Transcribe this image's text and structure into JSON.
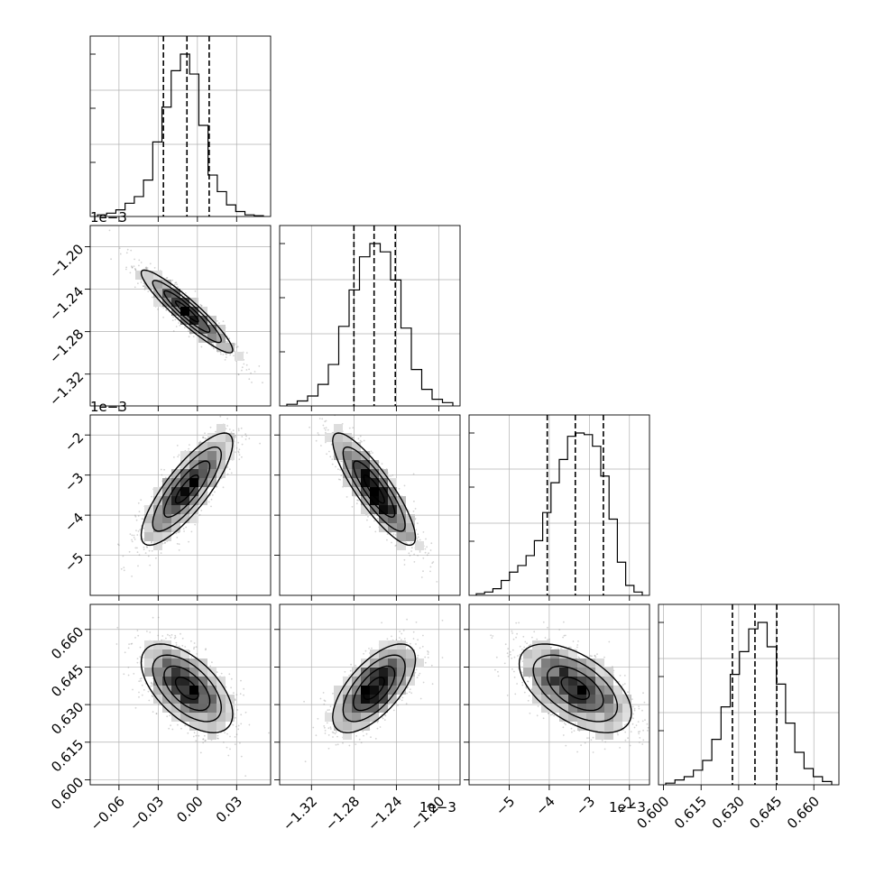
{
  "chart_data": {
    "type": "corner",
    "parameters": [
      {
        "range": [
          -0.082,
          0.056
        ],
        "median": -0.008,
        "q16": -0.026,
        "q84": 0.009,
        "hist_counts": [
          1,
          2,
          4,
          8,
          12,
          22,
          45,
          66,
          88,
          98,
          86,
          55,
          25,
          15,
          7,
          3,
          1,
          0.5
        ],
        "ticks": [
          -0.06,
          -0.03,
          0.0,
          0.03
        ],
        "tick_labels": [
          "−0.06",
          "−0.03",
          "0.00",
          "0.03"
        ],
        "offset_text": ""
      },
      {
        "range": [
          -1.35,
          -1.18
        ],
        "median": -1.261,
        "q16": -1.28,
        "q84": -1.241,
        "hist_counts": [
          1,
          3,
          6,
          13,
          25,
          48,
          70,
          90,
          98,
          93,
          76,
          47,
          22,
          10,
          4,
          2
        ],
        "ticks": [
          -1.32,
          -1.28,
          -1.24,
          -1.2
        ],
        "tick_labels": [
          "−1.32",
          "−1.28",
          "−1.24",
          "−1.20"
        ],
        "offset_text": "1e−3"
      },
      {
        "range": [
          -6.0,
          -1.5
        ],
        "median": -3.35,
        "q16": -4.05,
        "q84": -2.65,
        "hist_counts": [
          1,
          2,
          4,
          9,
          14,
          18,
          24,
          33,
          50,
          68,
          82,
          96,
          98,
          97,
          90,
          72,
          46,
          20,
          6,
          2
        ],
        "ticks": [
          -5,
          -4,
          -3,
          -2
        ],
        "tick_labels": [
          "−5",
          "−4",
          "−3",
          "−2"
        ],
        "offset_text": "1e−3"
      },
      {
        "range": [
          0.598,
          0.67
        ],
        "median": 0.6365,
        "q16": 0.6275,
        "q84": 0.6452,
        "hist_counts": [
          1,
          3,
          5,
          9,
          15,
          28,
          48,
          68,
          82,
          96,
          100,
          85,
          62,
          38,
          20,
          10,
          5,
          2
        ],
        "ticks": [
          0.6,
          0.615,
          0.63,
          0.645,
          0.66
        ],
        "tick_labels": [
          "0.600",
          "0.615",
          "0.630",
          "0.645",
          "0.660"
        ],
        "offset_text": ""
      }
    ],
    "correlations": {
      "1-0": -0.93,
      "2-0": 0.82,
      "2-1": -0.86,
      "3-0": -0.58,
      "3-1": 0.65,
      "3-2": -0.55
    },
    "quantiles": [
      0.16,
      0.5,
      0.84
    ],
    "grid": true
  }
}
